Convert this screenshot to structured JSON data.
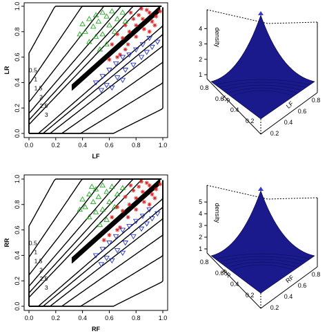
{
  "chart_data": [
    {
      "type": "scatter",
      "panel": "top-left",
      "xlabel": "LF",
      "ylabel": "LR",
      "xlim": [
        0,
        1
      ],
      "ylim": [
        0,
        1
      ],
      "xticks": [
        "0.0",
        "0.2",
        "0.4",
        "0.6",
        "0.8",
        "1.0"
      ],
      "yticks": [
        "0.0",
        "0.2",
        "0.4",
        "0.6",
        "0.8",
        "1.0"
      ],
      "contour_levels": [
        "0.5",
        "1",
        "1.5",
        "2",
        "2.5",
        "3"
      ],
      "series": [
        {
          "marker": "triangle-up",
          "color": "#22aa22",
          "points": [
            [
              0.4,
              0.86
            ],
            [
              0.45,
              0.9
            ],
            [
              0.5,
              0.93
            ],
            [
              0.55,
              0.95
            ],
            [
              0.42,
              0.8
            ],
            [
              0.48,
              0.84
            ],
            [
              0.52,
              0.88
            ],
            [
              0.58,
              0.92
            ],
            [
              0.62,
              0.96
            ],
            [
              0.55,
              0.78
            ],
            [
              0.6,
              0.85
            ],
            [
              0.66,
              0.9
            ],
            [
              0.7,
              0.95
            ],
            [
              0.45,
              0.72
            ],
            [
              0.5,
              0.76
            ],
            [
              0.58,
              0.7
            ],
            [
              0.64,
              0.8
            ],
            [
              0.72,
              0.88
            ],
            [
              0.38,
              0.78
            ],
            [
              0.53,
              0.66
            ]
          ]
        },
        {
          "marker": "asterisk",
          "color": "#dd2222",
          "points": [
            [
              0.7,
              0.75
            ],
            [
              0.75,
              0.8
            ],
            [
              0.8,
              0.85
            ],
            [
              0.85,
              0.9
            ],
            [
              0.9,
              0.95
            ],
            [
              0.72,
              0.85
            ],
            [
              0.78,
              0.9
            ],
            [
              0.82,
              0.93
            ],
            [
              0.88,
              0.97
            ],
            [
              0.68,
              0.62
            ],
            [
              0.74,
              0.7
            ],
            [
              0.8,
              0.76
            ],
            [
              0.86,
              0.82
            ],
            [
              0.92,
              0.88
            ],
            [
              0.95,
              0.92
            ],
            [
              0.62,
              0.7
            ],
            [
              0.66,
              0.78
            ],
            [
              0.76,
              0.95
            ],
            [
              0.84,
              0.98
            ],
            [
              0.9,
              0.8
            ],
            [
              0.94,
              0.85
            ],
            [
              0.98,
              0.96
            ],
            [
              0.6,
              0.58
            ],
            [
              0.66,
              0.6
            ],
            [
              0.72,
              0.66
            ]
          ]
        },
        {
          "marker": "triangle-down",
          "color": "#2233cc",
          "points": [
            [
              0.5,
              0.4
            ],
            [
              0.55,
              0.45
            ],
            [
              0.6,
              0.5
            ],
            [
              0.65,
              0.55
            ],
            [
              0.7,
              0.6
            ],
            [
              0.75,
              0.62
            ],
            [
              0.8,
              0.66
            ],
            [
              0.85,
              0.7
            ],
            [
              0.9,
              0.75
            ],
            [
              0.58,
              0.38
            ],
            [
              0.66,
              0.44
            ],
            [
              0.72,
              0.5
            ],
            [
              0.78,
              0.54
            ],
            [
              0.84,
              0.6
            ],
            [
              0.92,
              0.68
            ],
            [
              0.62,
              0.36
            ],
            [
              0.7,
              0.42
            ],
            [
              0.88,
              0.64
            ],
            [
              0.96,
              0.72
            ],
            [
              0.54,
              0.34
            ]
          ]
        }
      ]
    },
    {
      "type": "surface",
      "panel": "top-right",
      "xlabel": "LF",
      "ylabel": "LR",
      "zlabel": "density",
      "zticks": [
        "1",
        "2",
        "3",
        "4"
      ],
      "xticks": [
        "0.2",
        "0.4",
        "0.6",
        "0.8"
      ],
      "yticks": [
        "0.2",
        "0.4",
        "0.6",
        "0.8"
      ]
    },
    {
      "type": "scatter",
      "panel": "bottom-left",
      "xlabel": "RF",
      "ylabel": "RR",
      "xlim": [
        0,
        1
      ],
      "ylim": [
        0,
        1
      ],
      "xticks": [
        "0.0",
        "0.2",
        "0.4",
        "0.6",
        "0.8",
        "1.0"
      ],
      "yticks": [
        "0.0",
        "0.2",
        "0.4",
        "0.6",
        "0.8",
        "1.0"
      ],
      "contour_levels": [
        "0.5",
        "1",
        "1.5",
        "2",
        "2.5",
        "3"
      ],
      "series": [
        {
          "marker": "triangle-up",
          "color": "#22aa22",
          "points": [
            [
              0.4,
              0.84
            ],
            [
              0.45,
              0.88
            ],
            [
              0.5,
              0.92
            ],
            [
              0.55,
              0.95
            ],
            [
              0.42,
              0.78
            ],
            [
              0.48,
              0.82
            ],
            [
              0.52,
              0.86
            ],
            [
              0.58,
              0.9
            ],
            [
              0.62,
              0.94
            ],
            [
              0.55,
              0.76
            ],
            [
              0.6,
              0.82
            ],
            [
              0.66,
              0.88
            ],
            [
              0.7,
              0.93
            ],
            [
              0.45,
              0.7
            ],
            [
              0.5,
              0.74
            ],
            [
              0.58,
              0.68
            ],
            [
              0.64,
              0.78
            ],
            [
              0.38,
              0.76
            ],
            [
              0.53,
              0.64
            ],
            [
              0.47,
              0.94
            ]
          ]
        },
        {
          "marker": "asterisk",
          "color": "#dd2222",
          "points": [
            [
              0.7,
              0.75
            ],
            [
              0.75,
              0.8
            ],
            [
              0.8,
              0.85
            ],
            [
              0.85,
              0.9
            ],
            [
              0.9,
              0.95
            ],
            [
              0.72,
              0.86
            ],
            [
              0.78,
              0.91
            ],
            [
              0.82,
              0.94
            ],
            [
              0.88,
              0.97
            ],
            [
              0.68,
              0.62
            ],
            [
              0.74,
              0.7
            ],
            [
              0.8,
              0.76
            ],
            [
              0.86,
              0.82
            ],
            [
              0.92,
              0.88
            ],
            [
              0.95,
              0.92
            ],
            [
              0.62,
              0.7
            ],
            [
              0.66,
              0.78
            ],
            [
              0.76,
              0.95
            ],
            [
              0.84,
              0.98
            ],
            [
              0.9,
              0.8
            ],
            [
              0.94,
              0.85
            ],
            [
              0.98,
              0.96
            ],
            [
              0.6,
              0.56
            ],
            [
              0.66,
              0.6
            ],
            [
              0.56,
              0.52
            ]
          ]
        },
        {
          "marker": "triangle-down",
          "color": "#2233cc",
          "points": [
            [
              0.5,
              0.4
            ],
            [
              0.55,
              0.45
            ],
            [
              0.6,
              0.5
            ],
            [
              0.65,
              0.55
            ],
            [
              0.7,
              0.6
            ],
            [
              0.75,
              0.63
            ],
            [
              0.8,
              0.67
            ],
            [
              0.85,
              0.71
            ],
            [
              0.9,
              0.76
            ],
            [
              0.58,
              0.38
            ],
            [
              0.66,
              0.44
            ],
            [
              0.72,
              0.5
            ],
            [
              0.78,
              0.55
            ],
            [
              0.84,
              0.61
            ],
            [
              0.92,
              0.69
            ],
            [
              0.62,
              0.36
            ],
            [
              0.7,
              0.42
            ],
            [
              0.88,
              0.65
            ],
            [
              0.96,
              0.73
            ],
            [
              0.54,
              0.33
            ]
          ]
        }
      ]
    },
    {
      "type": "surface",
      "panel": "bottom-right",
      "xlabel": "RF",
      "ylabel": "RR",
      "zlabel": "density",
      "zticks": [
        "1",
        "2",
        "3",
        "4",
        "5"
      ],
      "xticks": [
        "0.2",
        "0.4",
        "0.6",
        "0.8"
      ],
      "yticks": [
        "0.2",
        "0.4",
        "0.6",
        "0.8"
      ]
    }
  ],
  "colors": {
    "green_series": "#22aa22",
    "red_series": "#dd2222",
    "blue_series": "#2233cc",
    "surface": "#1a1a8c"
  }
}
